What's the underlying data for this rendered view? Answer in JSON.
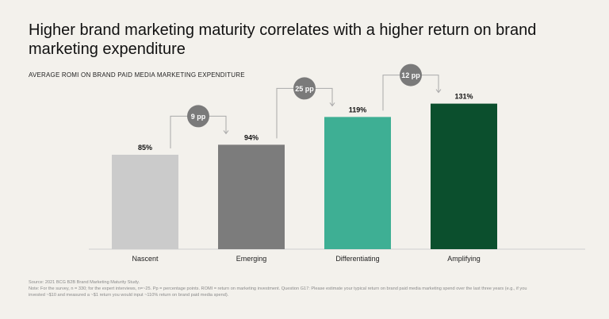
{
  "title": "Higher brand marketing maturity correlates with a higher return on brand marketing expenditure",
  "subtitle": "AVERAGE ROMI ON BRAND PAID MEDIA MARKETING EXPENDITURE",
  "chart_data": {
    "type": "bar",
    "categories": [
      "Nascent",
      "Emerging",
      "Differentiating",
      "Amplifying"
    ],
    "values": [
      85,
      94,
      119,
      131
    ],
    "value_labels": [
      "85%",
      "94%",
      "119%",
      "131%"
    ],
    "colors": [
      "#cbcbcb",
      "#7c7c7c",
      "#3eaf94",
      "#0b4f2d"
    ],
    "ylim": [
      0,
      135
    ],
    "grid": false,
    "annotations": [
      {
        "from": "Nascent",
        "to": "Emerging",
        "label": "9 pp"
      },
      {
        "from": "Emerging",
        "to": "Differentiating",
        "label": "25 pp"
      },
      {
        "from": "Differentiating",
        "to": "Amplifying",
        "label": "12 pp"
      }
    ],
    "annotation_color": "#7a7a7a"
  },
  "source": {
    "line1": "Source: 2021 BCG B2B Brand Marketing Maturity Study.",
    "line2": "Note: For the survey, n = 330; for the expert interviews, n=~25. Pp = percentage points. ROMI = return on marketing investment. Question G17: Please estimate your typical return on brand paid media marketing  spend over the last three years (e.g., if you",
    "line3": "invested ~$10 and measured a ~$1 return you would input ~110% return on brand paid media spend)."
  }
}
